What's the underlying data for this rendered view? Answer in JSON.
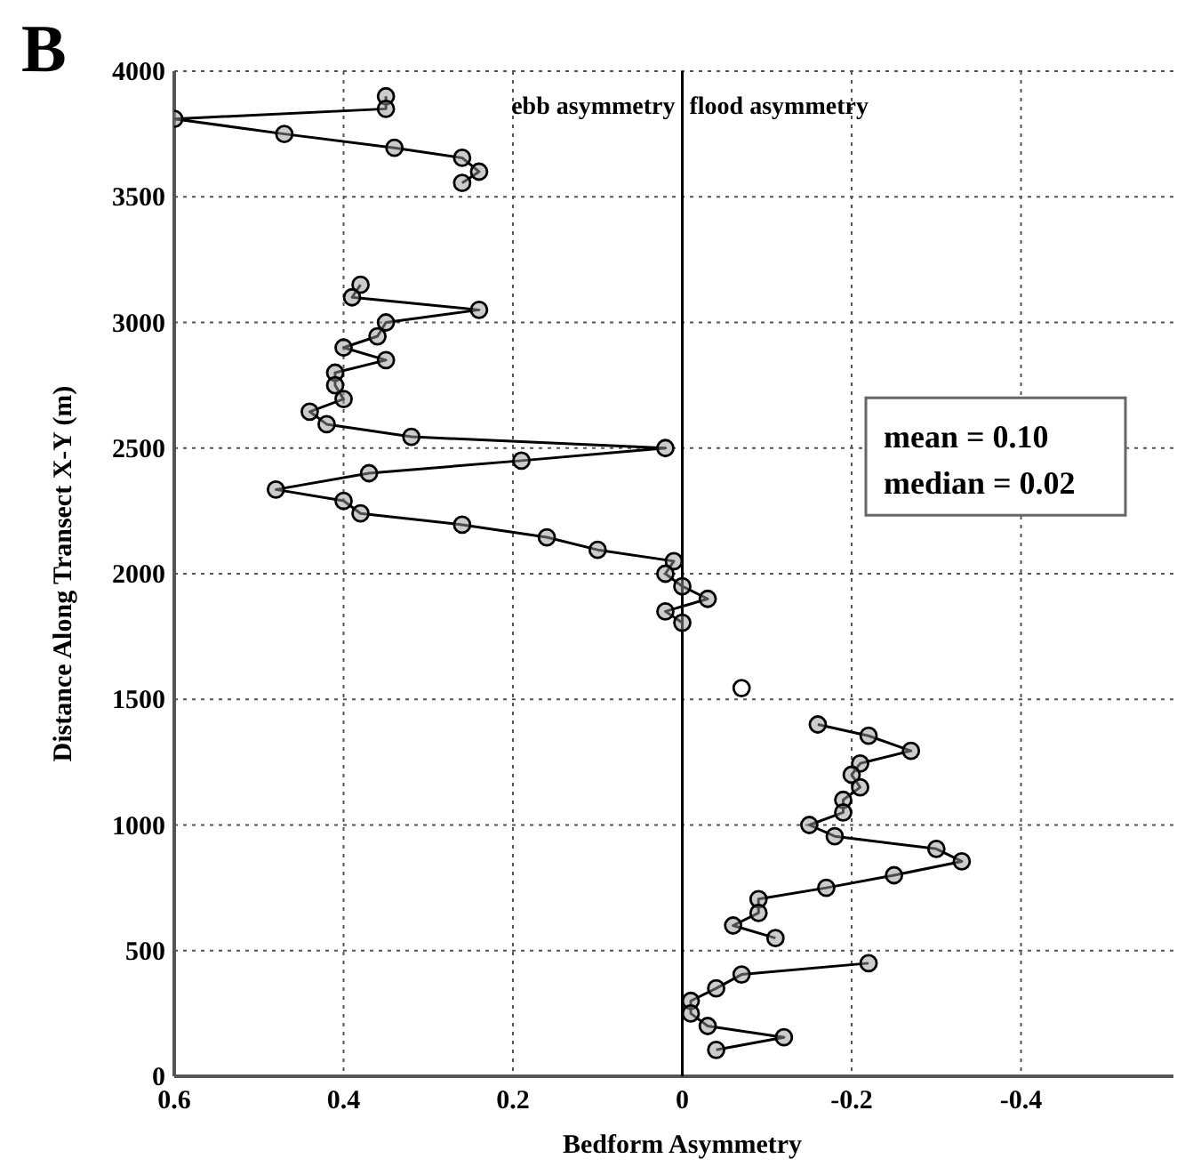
{
  "chart_data": {
    "type": "line",
    "title": "B",
    "xlabel": "Bedform Asymmetry",
    "ylabel": "Distance Along Transect X-Y (m)",
    "xlim": [
      0.6,
      -0.58
    ],
    "xticks": [
      0.6,
      0.4,
      0.2,
      0,
      -0.2,
      -0.4
    ],
    "ylim": [
      0,
      4000
    ],
    "yticks": [
      0,
      500,
      1000,
      1500,
      2000,
      2500,
      3000,
      3500,
      4000
    ],
    "grid": true,
    "marker": "circle",
    "line_style": "solid",
    "ref_lines": [
      {
        "axis": "x",
        "value": 0,
        "color": "#000000"
      }
    ],
    "annotations": [
      "ebb asymmetry",
      "flood asymmetry",
      "mean = 0.10",
      "median = 0.02"
    ],
    "series": [
      {
        "color": "#000000",
        "x": [
          0.35,
          0.35,
          0.6,
          0.47,
          0.34,
          0.26,
          0.24,
          0.26
        ],
        "values": [
          3900,
          3850,
          3810,
          3750,
          3695,
          3655,
          3600,
          3555
        ]
      },
      {
        "color": "#000000",
        "x": [
          0.38,
          0.39,
          0.24,
          0.35,
          0.36,
          0.4,
          0.35,
          0.41,
          0.41,
          0.4,
          0.44,
          0.42,
          0.32,
          0.02,
          0.19,
          0.37,
          0.48,
          0.4,
          0.38,
          0.26,
          0.16,
          0.1,
          0.01,
          0.02,
          0,
          -0.03,
          0.02,
          0
        ],
        "values": [
          3150,
          3100,
          3050,
          3000,
          2945,
          2900,
          2850,
          2800,
          2750,
          2695,
          2645,
          2595,
          2545,
          2500,
          2450,
          2400,
          2335,
          2290,
          2240,
          2195,
          2145,
          2095,
          2050,
          2000,
          1950,
          1900,
          1850,
          1805
        ]
      },
      {
        "type": "scatter",
        "color": "#000000",
        "x": [
          -0.07
        ],
        "values": [
          1545
        ]
      },
      {
        "color": "#000000",
        "x": [
          -0.16,
          -0.22,
          -0.27,
          -0.21,
          -0.2,
          -0.21,
          -0.19,
          -0.19,
          -0.15,
          -0.18,
          -0.3,
          -0.33,
          -0.25,
          -0.17,
          -0.09,
          -0.09,
          -0.06,
          -0.11
        ],
        "values": [
          1400,
          1355,
          1295,
          1245,
          1200,
          1150,
          1100,
          1050,
          1000,
          955,
          905,
          855,
          800,
          750,
          705,
          650,
          600,
          550
        ]
      },
      {
        "color": "#000000",
        "x": [
          -0.22,
          -0.07,
          -0.04,
          -0.01,
          -0.01,
          -0.03,
          -0.12,
          -0.04
        ],
        "values": [
          450,
          405,
          350,
          300,
          250,
          200,
          155,
          105
        ]
      }
    ]
  }
}
